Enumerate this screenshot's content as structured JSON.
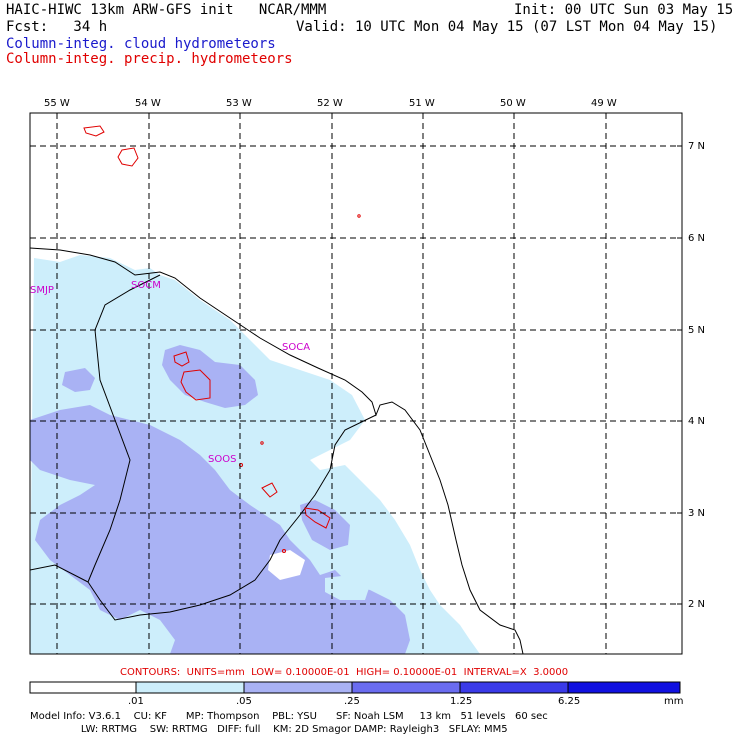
{
  "header": {
    "line1_left": "HAIC-HIWC 13km ARW-GFS init   NCAR/MMM",
    "line1_right": "Init: 00 UTC Sun 03 May 15",
    "line2_left": "Fcst:   34 h",
    "line2_right": "Valid: 10 UTC Mon 04 May 15 (07 LST Mon 04 May 15)",
    "field_cloud": "Column-integ. cloud hydrometeors",
    "field_precip": "Column-integ. precip. hydrometeors"
  },
  "map": {
    "lon_labels": [
      "55 W",
      "54 W",
      "53 W",
      "52 W",
      "51 W",
      "50 W",
      "49 W"
    ],
    "lat_labels": [
      "7 N",
      "6 N",
      "5 N",
      "4 N",
      "3 N",
      "2 N"
    ],
    "stations": [
      "SMJP",
      "SOCM",
      "SOCA",
      "SOOS"
    ]
  },
  "contour_info": "CONTOURS:  UNITS=mm  LOW= 0.10000E-01  HIGH= 0.10000E-01  INTERVAL=X  3.0000",
  "legend": {
    "ticks": [
      ".01",
      ".05",
      ".25",
      "1.25",
      "6.25"
    ],
    "units": "mm",
    "colors": [
      "#ffffff",
      "#cdeefb",
      "#a9b2f4",
      "#6a6cf0",
      "#3a3ae8",
      "#1010e0"
    ]
  },
  "model_info": {
    "line1": "Model Info: V3.6.1    CU: KF      MP: Thompson    PBL: YSU      SF: Noah LSM     13 km   51 levels   60 sec",
    "line2": "                LW: RRTMG    SW: RRTMG   DIFF: full    KM: 2D Smagor DAMP: Rayleigh3   SFLAY: MM5"
  }
}
